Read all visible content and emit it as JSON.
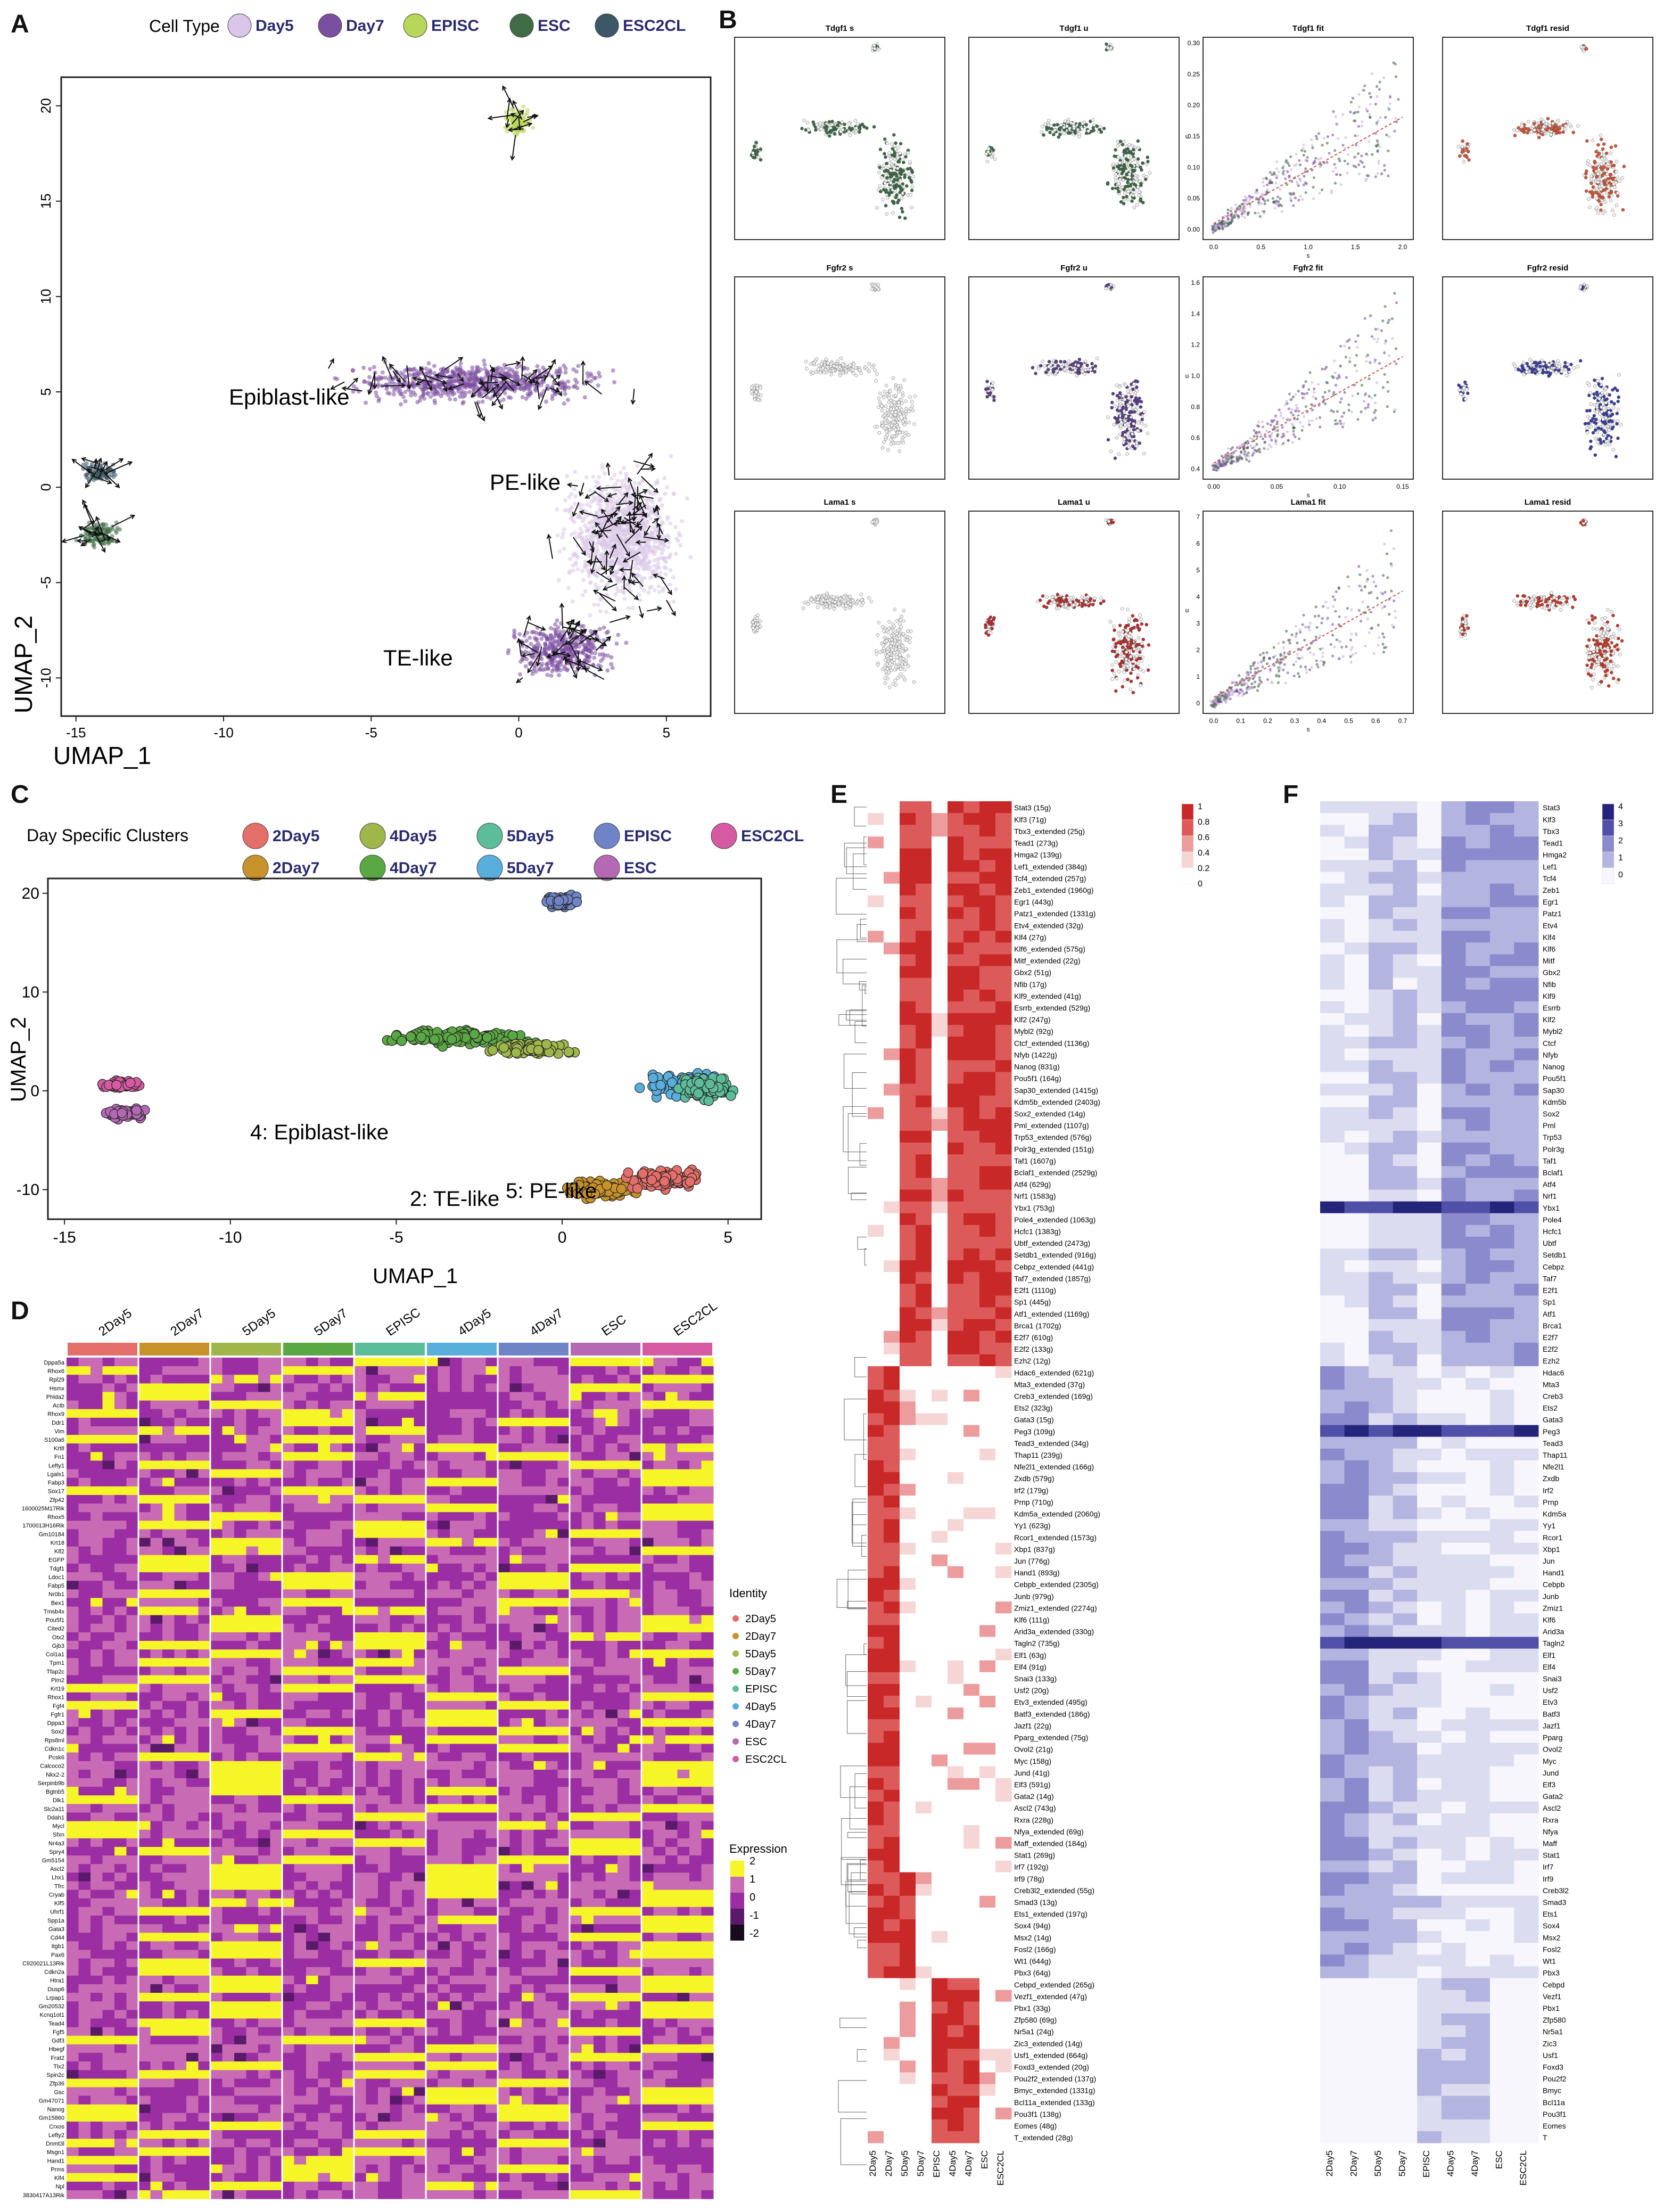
{
  "panels": {
    "A": {
      "label": "A",
      "legend_title": "Cell Type",
      "legend": [
        {
          "name": "Day5",
          "color": "#d9c6e8"
        },
        {
          "name": "Day7",
          "color": "#7b4fa0"
        },
        {
          "name": "EPISC",
          "color": "#b7d65a"
        },
        {
          "name": "ESC",
          "color": "#3f6b45"
        },
        {
          "name": "ESC2CL",
          "color": "#3c5766"
        }
      ],
      "annotations": [
        "Epiblast-like",
        "PE-like",
        "TE-like"
      ],
      "xlabel": "UMAP_1",
      "ylabel": "UMAP_2",
      "xticks": [
        "-15",
        "-10",
        "-5",
        "0",
        "5"
      ],
      "yticks": [
        "20",
        "15",
        "10",
        "5",
        "0",
        "-5",
        "-10"
      ]
    },
    "B": {
      "label": "B",
      "titles": [
        [
          "Tdgf1 s",
          "Tdgf1 u",
          "Tdgf1 fit",
          "Tdgf1 resid"
        ],
        [
          "Fgfr2 s",
          "Fgfr2 u",
          "Fgfr2 fit",
          "Fgfr2 resid"
        ],
        [
          "Lama1 s",
          "Lama1 u",
          "Lama1 fit",
          "Lama1 resid"
        ]
      ],
      "fit_xticks": [
        [
          "0.0",
          "0.5",
          "1.0",
          "1.5",
          "2.0"
        ],
        [
          "0.00",
          "0.05",
          "0.10",
          "0.15"
        ],
        [
          "0.0",
          "0.1",
          "0.2",
          "0.3",
          "0.4",
          "0.5",
          "0.6",
          "0.7"
        ]
      ],
      "fit_yticks": [
        [
          "0.00",
          "0.05",
          "0.10",
          "0.15",
          "0.20",
          "0.25",
          "0.30"
        ],
        [
          "0.4",
          "0.6",
          "0.8",
          "1.0",
          "1.2",
          "1.4",
          "1.6"
        ],
        [
          "0",
          "1",
          "2",
          "3",
          "4",
          "5",
          "6",
          "7"
        ]
      ],
      "fit_xlabel": "s",
      "fit_ylabel": "u"
    },
    "C": {
      "label": "C",
      "legend_title": "Day Specific Clusters",
      "legend": [
        {
          "name": "2Day5",
          "color": "#e46f6a"
        },
        {
          "name": "4Day5",
          "color": "#9fb64b"
        },
        {
          "name": "5Day5",
          "color": "#5dbc9a"
        },
        {
          "name": "EPISC",
          "color": "#6f84c6"
        },
        {
          "name": "ESC2CL",
          "color": "#d65aa2"
        },
        {
          "name": "2Day7",
          "color": "#c8922b"
        },
        {
          "name": "4Day7",
          "color": "#5aa844"
        },
        {
          "name": "5Day7",
          "color": "#5aaedc"
        },
        {
          "name": "ESC",
          "color": "#b569b5"
        }
      ],
      "annotations": [
        "4: Epiblast-like",
        "5: PE-like",
        "2: TE-like"
      ],
      "xlabel": "UMAP_1",
      "ylabel": "UMAP_2",
      "xticks": [
        "-15",
        "-10",
        "-5",
        "0",
        "5"
      ],
      "yticks": [
        "20",
        "10",
        "0",
        "-10"
      ]
    },
    "D": {
      "label": "D",
      "groups": [
        {
          "name": "2Day5",
          "color": "#e46f6a"
        },
        {
          "name": "2Day7",
          "color": "#c8922b"
        },
        {
          "name": "5Day5",
          "color": "#9fb64b"
        },
        {
          "name": "5Day7",
          "color": "#5aa844"
        },
        {
          "name": "EPISC",
          "color": "#5dbc9a"
        },
        {
          "name": "4Day5",
          "color": "#5aaedc"
        },
        {
          "name": "4Day7",
          "color": "#6f84c6"
        },
        {
          "name": "ESC",
          "color": "#b569b5"
        },
        {
          "name": "ESC2CL",
          "color": "#d65aa2"
        }
      ],
      "identity_title": "Identity",
      "identity": [
        {
          "name": "2Day5",
          "color": "#e46f6a"
        },
        {
          "name": "2Day7",
          "color": "#c8922b"
        },
        {
          "name": "5Day5",
          "color": "#9fb64b"
        },
        {
          "name": "5Day7",
          "color": "#5aa844"
        },
        {
          "name": "EPISC",
          "color": "#5dbc9a"
        },
        {
          "name": "4Day5",
          "color": "#5aaedc"
        },
        {
          "name": "4Day7",
          "color": "#6f84c6"
        },
        {
          "name": "ESC",
          "color": "#b569b5"
        },
        {
          "name": "ESC2CL",
          "color": "#d65aa2"
        }
      ],
      "expression_title": "Expression",
      "expression_ticks": [
        "2",
        "1",
        "0",
        "-1",
        "-2"
      ],
      "genes": [
        "Dppa5a",
        "Rhox6",
        "Rpl29",
        "Hsmx",
        "Phlda2",
        "Actb",
        "Rhox9",
        "Ddr1",
        "Vim",
        "S100a6",
        "Krt8",
        "Fn1",
        "Lefty1",
        "Lgals1",
        "Fabp3",
        "Sox17",
        "Zfp42",
        "1600025M17Rik",
        "Rhox5",
        "1700013H16Rik",
        "Gm10184",
        "Krt18",
        "Klf2",
        "EGFP",
        "Tdgf1",
        "Ldoc1",
        "Fabp5",
        "Nr0b1",
        "Bex1",
        "Tmsb4x",
        "Pou5f1",
        "Cited2",
        "Otx2",
        "Gjb3",
        "Col1a1",
        "Tpm1",
        "Tfap2c",
        "Pim2",
        "Krt19",
        "Rhox1",
        "Fgf4",
        "Fgfr1",
        "Dppa3",
        "Sox2",
        "Rps8ml",
        "Cdkn1c",
        "Pcsk6",
        "Calcoco2",
        "Nkx2-2",
        "Serpinb9b",
        "Bgtnb5",
        "Dlk1",
        "Slc2a11",
        "Ddah1",
        "Mycl",
        "Sfxn",
        "Nr4a3",
        "Spry4",
        "Gm5154",
        "Ascl2",
        "Lhx1",
        "Tfrc",
        "Cryab",
        "Klf5",
        "Uhrf1",
        "Spp1a",
        "Gata3",
        "Cd44",
        "Itgb1",
        "Pax6",
        "C920021L13Rik",
        "Cdkn2a",
        "Htra1",
        "Dusp6",
        "Lrpap1",
        "Gm20532",
        "Kcnq1ot1",
        "Tead4",
        "Fgf5",
        "Gdf3",
        "Hbegf",
        "Frat2",
        "Tlx2",
        "Spin2c",
        "Zfp36",
        "Gsc",
        "Gm47071",
        "Nanog",
        "Gm15860",
        "Crxos",
        "Lefty2",
        "Dnmt3l",
        "Msgn1",
        "Hand1",
        "Prms",
        "Klf4",
        "Npl",
        "3830417A13Rik"
      ]
    },
    "E": {
      "label": "E",
      "columns": [
        "2Day5",
        "2Day7",
        "5Day5",
        "5Day7",
        "EPISC",
        "4Day5",
        "4Day7",
        "ESC",
        "ESC2CL"
      ],
      "colorbar_ticks": [
        "1",
        "0.8",
        "0.6",
        "0.4",
        "0.2",
        "0"
      ],
      "rows": [
        "Stat3 (15g)",
        "Klf3 (71g)",
        "Tbx3_extended (25g)",
        "Tead1 (273g)",
        "Hmga2 (139g)",
        "Lef1_extended (384g)",
        "Tcf4_extended (257g)",
        "Zeb1_extended (1960g)",
        "Egr1 (443g)",
        "Patz1_extended (1331g)",
        "Etv4_extended (32g)",
        "Klf4 (27g)",
        "Klf6_extended (575g)",
        "Mitf_extended (22g)",
        "Gbx2 (51g)",
        "Nfib (17g)",
        "Klf9_extended (41g)",
        "Esrrb_extended (529g)",
        "Klf2 (247g)",
        "Mybl2 (92g)",
        "Ctcf_extended (1136g)",
        "Nfyb (1422g)",
        "Nanog (831g)",
        "Pou5f1 (164g)",
        "Sap30_extended (1415g)",
        "Kdm5b_extended (2403g)",
        "Sox2_extended (14g)",
        "Pml_extended (1107g)",
        "Trp53_extended (576g)",
        "Polr3g_extended (151g)",
        "Taf1 (1607g)",
        "Bclaf1_extended (2529g)",
        "Atf4 (629g)",
        "Nrf1 (1583g)",
        "Ybx1 (753g)",
        "Pole4_extended (1063g)",
        "Hcfc1 (1383g)",
        "Ubtf_extended (2473g)",
        "Setdb1_extended (916g)",
        "Cebpz_extended (441g)",
        "Taf7_extended (1857g)",
        "E2f1 (1110g)",
        "Sp1 (445g)",
        "Atf1_extended (1169g)",
        "Brca1 (1702g)",
        "E2f7 (610g)",
        "E2f2 (133g)",
        "Ezh2 (12g)",
        "Hdac6_extended (621g)",
        "Mta3_extended (37g)",
        "Creb3_extended (169g)",
        "Ets2 (323g)",
        "Gata3 (15g)",
        "Peg3 (109g)",
        "Tead3_extended (34g)",
        "Thap11 (239g)",
        "Nfe2l1_extended (166g)",
        "Zxdb (579g)",
        "Irf2 (179g)",
        "Prnp (710g)",
        "Kdm5a_extended (2060g)",
        "Yy1 (623g)",
        "Rcor1_extended (1573g)",
        "Xbp1 (837g)",
        "Jun (776g)",
        "Hand1 (893g)",
        "Cebpb_extended (2305g)",
        "Junb (979g)",
        "Zmiz1_extended (2274g)",
        "Klf6 (111g)",
        "Arid3a_extended (330g)",
        "Tagln2 (735g)",
        "Elf1 (63g)",
        "Elf4 (91g)",
        "Snai3 (133g)",
        "Usf2 (20g)",
        "Etv3_extended (495g)",
        "Batf3_extended (186g)",
        "Jazf1 (22g)",
        "Pparg_extended (75g)",
        "Ovol2 (21g)",
        "Myc (158g)",
        "Jund (41g)",
        "Elf3 (591g)",
        "Gata2 (14g)",
        "Ascl2 (743g)",
        "Rxra (228g)",
        "Nfya_extended (69g)",
        "Maff_extended (184g)",
        "Stat1 (269g)",
        "Irf7 (192g)",
        "Irf9 (78g)",
        "Creb3l2_extended (55g)",
        "Smad3 (13g)",
        "Ets1_extended (197g)",
        "Sox4 (94g)",
        "Msx2 (14g)",
        "Fosl2 (166g)",
        "Wt1 (644g)",
        "Pbx3 (64g)",
        "Cebpd_extended (265g)",
        "Vezf1_extended (47g)",
        "Pbx1 (33g)",
        "Zfp580 (69g)",
        "Nr5a1 (24g)",
        "Zic3_extended (14g)",
        "Usf1_extended (664g)",
        "Foxd3_extended (20g)",
        "Pou2f2_extended (137g)",
        "Bmyc_extended (1331g)",
        "Bcl11a_extended (133g)",
        "Pou3f1 (138g)",
        "Eomes (48g)",
        "T_extended (28g)"
      ]
    },
    "F": {
      "label": "F",
      "columns": [
        "2Day5",
        "2Day7",
        "5Day5",
        "5Day7",
        "EPISC",
        "4Day5",
        "4Day7",
        "ESC",
        "ESC2CL"
      ],
      "colorbar_ticks": [
        "4",
        "3",
        "2",
        "1",
        "0"
      ],
      "rows": [
        "Stat3",
        "Klf3",
        "Tbx3",
        "Tead1",
        "Hmga2",
        "Lef1",
        "Tcf4",
        "Zeb1",
        "Egr1",
        "Patz1",
        "Etv4",
        "Klf4",
        "Klf6",
        "Mitf",
        "Gbx2",
        "Nfib",
        "Klf9",
        "Esrrb",
        "Klf2",
        "Mybl2",
        "Ctcf",
        "Nfyb",
        "Nanog",
        "Pou5f1",
        "Sap30",
        "Kdm5b",
        "Sox2",
        "Pml",
        "Trp53",
        "Polr3g",
        "Taf1",
        "Bclaf1",
        "Atf4",
        "Nrf1",
        "Ybx1",
        "Pole4",
        "Hcfc1",
        "Ubtf",
        "Setdb1",
        "Cebpz",
        "Taf7",
        "E2f1",
        "Sp1",
        "Atf1",
        "Brca1",
        "E2f7",
        "E2f2",
        "Ezh2",
        "Hdac6",
        "Mta3",
        "Creb3",
        "Ets2",
        "Gata3",
        "Peg3",
        "Tead3",
        "Thap11",
        "Nfe2l1",
        "Zxdb",
        "Irf2",
        "Prnp",
        "Kdm5a",
        "Yy1",
        "Rcor1",
        "Xbp1",
        "Jun",
        "Hand1",
        "Cebpb",
        "Junb",
        "Zmiz1",
        "Klf6",
        "Arid3a",
        "Tagln2",
        "Elf1",
        "Elf4",
        "Snai3",
        "Usf2",
        "Etv3",
        "Batf3",
        "Jazf1",
        "Pparg",
        "Ovol2",
        "Myc",
        "Jund",
        "Elf3",
        "Gata2",
        "Ascl2",
        "Rxra",
        "Nfya",
        "Maff",
        "Stat1",
        "Irf7",
        "Irf9",
        "Creb3l2",
        "Smad3",
        "Ets1",
        "Sox4",
        "Msx2",
        "Fosl2",
        "Wt1",
        "Pbx3",
        "Cebpd",
        "Vezf1",
        "Pbx1",
        "Zfp580",
        "Nr5a1",
        "Zic3",
        "Usf1",
        "Foxd3",
        "Pou2f2",
        "Bmyc",
        "Bcl11a",
        "Pou3f1",
        "Eomes",
        "T"
      ]
    }
  },
  "chart_data": [
    {
      "type": "scatter",
      "panel": "A",
      "xlabel": "UMAP_1",
      "ylabel": "UMAP_2",
      "xlim": [
        -15.5,
        6.5
      ],
      "ylim": [
        -12,
        21.5
      ],
      "clusters": [
        {
          "name": "EPISC",
          "cx": 0,
          "cy": 19.2,
          "rx": 0.6,
          "ry": 0.9
        },
        {
          "name": "ESC2CL",
          "cx": -14.2,
          "cy": 0.8,
          "rx": 0.8,
          "ry": 0.6
        },
        {
          "name": "ESC",
          "cx": -14.2,
          "cy": -2.5,
          "rx": 0.9,
          "ry": 0.9
        },
        {
          "name": "Day7",
          "cx": -1.5,
          "cy": 5.5,
          "rx": 5.5,
          "ry": 1.3
        },
        {
          "name": "Day5",
          "cx": 3.5,
          "cy": -2.5,
          "rx": 2.5,
          "ry": 4.5
        },
        {
          "name": "Day7",
          "cx": 1.5,
          "cy": -8.5,
          "rx": 2.2,
          "ry": 1.8
        }
      ]
    },
    {
      "type": "scatter",
      "panel": "C",
      "xlabel": "UMAP_1",
      "ylabel": "UMAP_2",
      "xlim": [
        -15.5,
        6
      ],
      "ylim": [
        -13,
        21.5
      ],
      "clusters": [
        {
          "name": "EPISC",
          "cx": 0,
          "cy": 19.2,
          "rx": 0.6,
          "ry": 0.8
        },
        {
          "name": "ESC2CL",
          "cx": -13.3,
          "cy": 0.6,
          "rx": 0.8,
          "ry": 0.5
        },
        {
          "name": "ESC",
          "cx": -13.2,
          "cy": -2.3,
          "rx": 0.9,
          "ry": 0.7
        },
        {
          "name": "4Day7",
          "cx": -3.2,
          "cy": 5.4,
          "rx": 2.8,
          "ry": 1.0
        },
        {
          "name": "4Day5",
          "cx": -1.0,
          "cy": 4.2,
          "rx": 1.6,
          "ry": 0.8
        },
        {
          "name": "5Day7",
          "cx": 3.6,
          "cy": 0.5,
          "rx": 1.3,
          "ry": 1.5
        },
        {
          "name": "5Day5",
          "cx": 4.3,
          "cy": 0.3,
          "rx": 1.0,
          "ry": 1.5
        },
        {
          "name": "2Day7",
          "cx": 1.2,
          "cy": -10.0,
          "rx": 1.5,
          "ry": 1.2
        },
        {
          "name": "2Day5",
          "cx": 3.0,
          "cy": -9.0,
          "rx": 1.4,
          "ry": 1.3
        }
      ]
    },
    {
      "type": "heatmap",
      "panel": "D",
      "title": "",
      "rows": "panels.D.genes",
      "columns": "panels.D.groups",
      "value_range": [
        -2,
        2
      ]
    },
    {
      "type": "heatmap",
      "panel": "E",
      "rows": "panels.E.rows",
      "columns": "panels.E.columns",
      "value_range": [
        0,
        1
      ]
    },
    {
      "type": "heatmap",
      "panel": "F",
      "rows": "panels.F.rows",
      "columns": "panels.F.columns",
      "value_range": [
        0,
        4
      ]
    }
  ]
}
